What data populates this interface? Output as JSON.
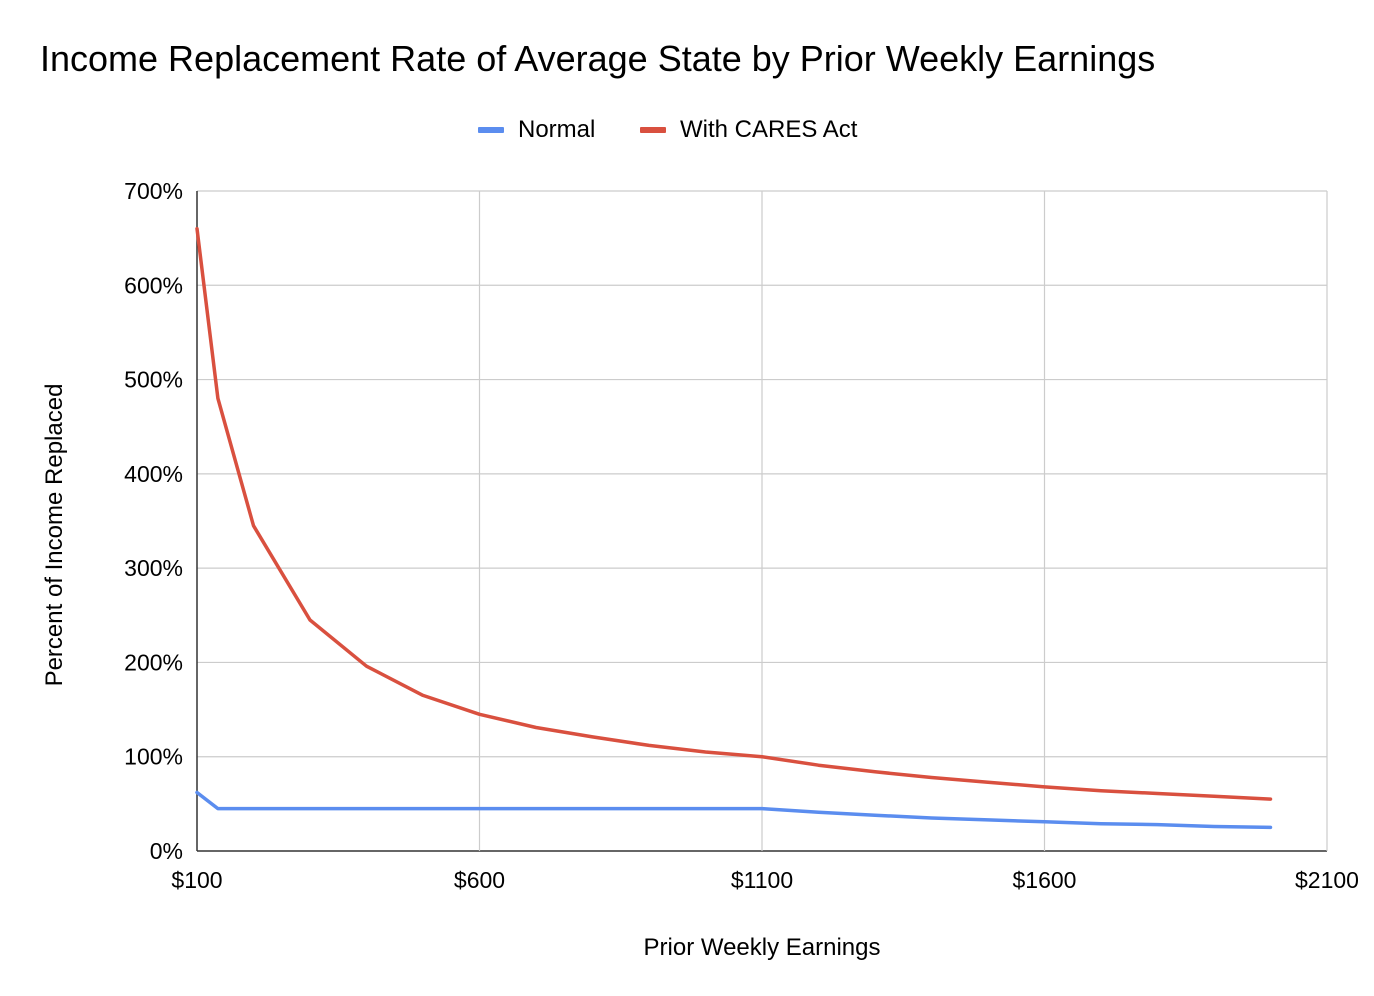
{
  "chart_data": {
    "type": "line",
    "title": "Income Replacement Rate of Average State by Prior Weekly Earnings",
    "xlabel": "Prior Weekly Earnings",
    "ylabel": "Percent of Income Replaced",
    "xlim": [
      100,
      2100
    ],
    "ylim": [
      0,
      700
    ],
    "x_ticks": [
      100,
      600,
      1100,
      1600,
      2100
    ],
    "x_tick_labels": [
      "$100",
      "$600",
      "$1100",
      "$1600",
      "$2100"
    ],
    "y_ticks": [
      0,
      100,
      200,
      300,
      400,
      500,
      600,
      700
    ],
    "y_tick_labels": [
      "0%",
      "100%",
      "200%",
      "300%",
      "400%",
      "500%",
      "600%",
      "700%"
    ],
    "grid": true,
    "legend_position": "top-center",
    "series": [
      {
        "name": "Normal",
        "color": "#5b8def",
        "x": [
          100,
          137,
          200,
          300,
          400,
          500,
          600,
          700,
          800,
          900,
          1000,
          1100,
          1200,
          1300,
          1400,
          1500,
          1600,
          1700,
          1800,
          1900,
          2000
        ],
        "y": [
          62,
          45,
          45,
          45,
          45,
          45,
          45,
          45,
          45,
          45,
          45,
          45,
          41,
          38,
          35,
          33,
          31,
          29,
          28,
          26,
          25
        ]
      },
      {
        "name": "With CARES Act",
        "color": "#d9503f",
        "x": [
          100,
          137,
          200,
          300,
          400,
          500,
          600,
          700,
          800,
          900,
          1000,
          1100,
          1200,
          1300,
          1400,
          1500,
          1600,
          1700,
          1800,
          1900,
          2000
        ],
        "y": [
          660,
          480,
          345,
          245,
          196,
          165,
          145,
          131,
          121,
          112,
          105,
          100,
          91,
          84,
          78,
          73,
          68,
          64,
          61,
          58,
          55
        ]
      }
    ]
  }
}
